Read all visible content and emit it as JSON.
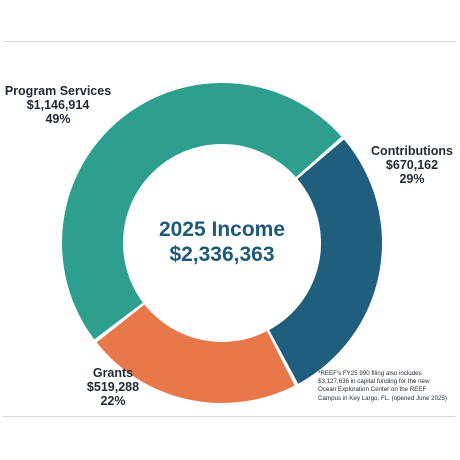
{
  "chart_data": {
    "type": "pie",
    "title": "2025 Income",
    "total": "$2,336,363",
    "slices": [
      {
        "name": "Program Services",
        "value": 1146914,
        "value_label": "$1,146,914",
        "percent_label": "49%",
        "color": "#2e9e8e"
      },
      {
        "name": "Contributions",
        "value": 670162,
        "value_label": "$670,162",
        "percent_label": "29%",
        "color": "#1f5e7c"
      },
      {
        "name": "Grants",
        "value": 519288,
        "value_label": "$519,288",
        "percent_label": "22%",
        "color": "#e8774a"
      }
    ]
  },
  "footnote": {
    "lines": [
      "*REEF's FY25 990 filing also includes",
      "$3,127,636 in capital funding for the new",
      "Ocean Exploration Center on the REEF",
      "Campus in Key Largo, FL. (opened June 2025)"
    ]
  }
}
